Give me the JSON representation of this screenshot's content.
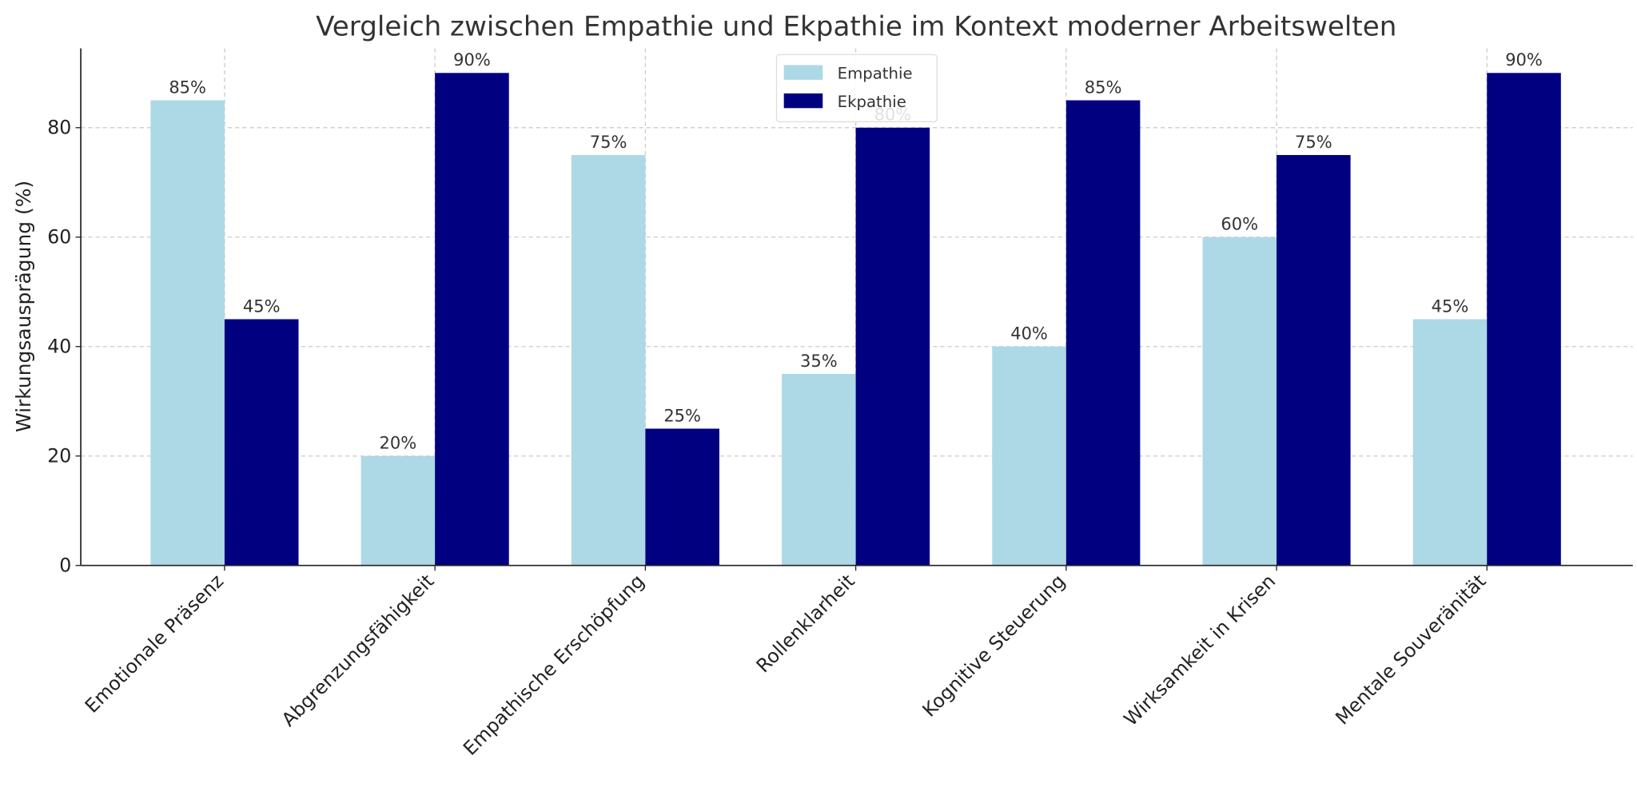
{
  "chart_data": {
    "type": "bar",
    "title": "Vergleich zwischen Empathie und Ekpathie im Kontext moderner Arbeitswelten",
    "xlabel": "",
    "ylabel": "Wirkungsausprägung (%)",
    "ylim": [
      0,
      94.5
    ],
    "yticks": [
      0,
      20,
      40,
      60,
      80
    ],
    "grid": true,
    "legend_position": "top-center",
    "categories": [
      "Emotionale Präsenz",
      "Abgrenzungsfähigkeit",
      "Empathische Erschöpfung",
      "Rollenklarheit",
      "Kognitive Steuerung",
      "Wirksamkeit in Krisen",
      "Mentale Souveränität"
    ],
    "series": [
      {
        "name": "Empathie",
        "color": "#add8e6",
        "values": [
          85,
          20,
          75,
          35,
          40,
          60,
          45
        ]
      },
      {
        "name": "Ekpathie",
        "color": "#000080",
        "values": [
          45,
          90,
          25,
          80,
          85,
          75,
          90
        ]
      }
    ],
    "data_label_suffix": "%"
  }
}
